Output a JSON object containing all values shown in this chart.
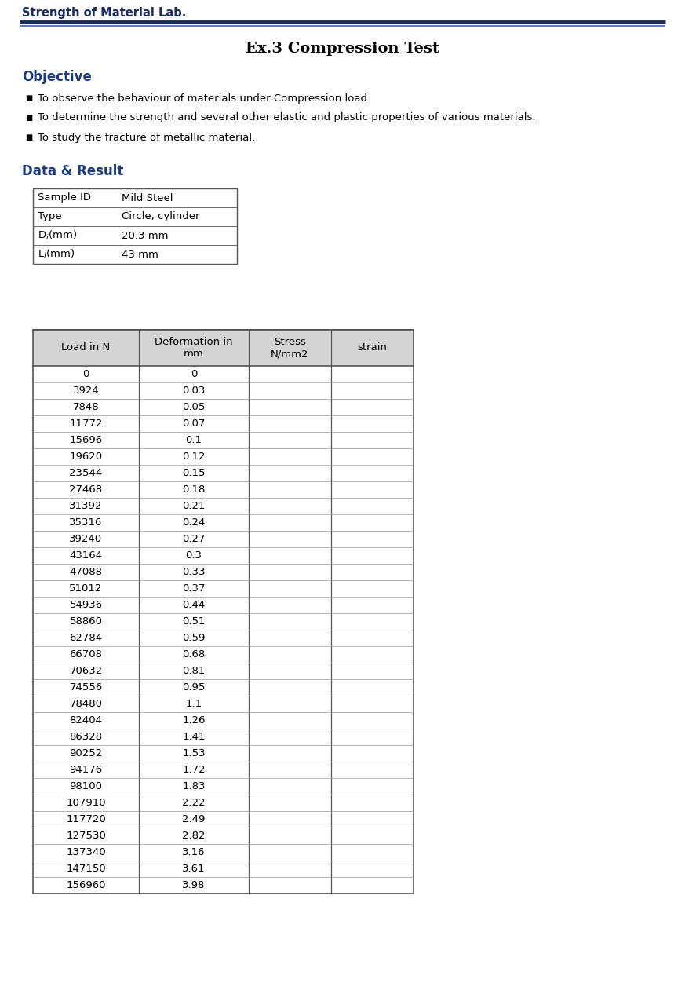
{
  "page_title": "Strength of Material Lab.",
  "main_title": "Ex.3 Compression Test",
  "section1_title": "Objective",
  "objectives": [
    "To observe the behaviour of materials under Compression load.",
    "To determine the strength and several other elastic and plastic properties of various materials.",
    "To study the fracture of metallic material."
  ],
  "section2_title": "Data & Result",
  "sample_info_col1": [
    "Sample ID",
    "Type",
    "D$_i$(mm)",
    "L$_i$(mm)"
  ],
  "sample_info_col2": [
    "Mild Steel",
    "Circle, cylinder",
    "20.3 mm",
    "43 mm"
  ],
  "table_headers": [
    "Load in N",
    "Deformation in\nmm",
    "Stress\nN/mm2",
    "strain"
  ],
  "table_data": [
    [
      "0",
      "0",
      "",
      ""
    ],
    [
      "3924",
      "0.03",
      "",
      ""
    ],
    [
      "7848",
      "0.05",
      "",
      ""
    ],
    [
      "11772",
      "0.07",
      "",
      ""
    ],
    [
      "15696",
      "0.1",
      "",
      ""
    ],
    [
      "19620",
      "0.12",
      "",
      ""
    ],
    [
      "23544",
      "0.15",
      "",
      ""
    ],
    [
      "27468",
      "0.18",
      "",
      ""
    ],
    [
      "31392",
      "0.21",
      "",
      ""
    ],
    [
      "35316",
      "0.24",
      "",
      ""
    ],
    [
      "39240",
      "0.27",
      "",
      ""
    ],
    [
      "43164",
      "0.3",
      "",
      ""
    ],
    [
      "47088",
      "0.33",
      "",
      ""
    ],
    [
      "51012",
      "0.37",
      "",
      ""
    ],
    [
      "54936",
      "0.44",
      "",
      ""
    ],
    [
      "58860",
      "0.51",
      "",
      ""
    ],
    [
      "62784",
      "0.59",
      "",
      ""
    ],
    [
      "66708",
      "0.68",
      "",
      ""
    ],
    [
      "70632",
      "0.81",
      "",
      ""
    ],
    [
      "74556",
      "0.95",
      "",
      ""
    ],
    [
      "78480",
      "1.1",
      "",
      ""
    ],
    [
      "82404",
      "1.26",
      "",
      ""
    ],
    [
      "86328",
      "1.41",
      "",
      ""
    ],
    [
      "90252",
      "1.53",
      "",
      ""
    ],
    [
      "94176",
      "1.72",
      "",
      ""
    ],
    [
      "98100",
      "1.83",
      "",
      ""
    ],
    [
      "107910",
      "2.22",
      "",
      ""
    ],
    [
      "117720",
      "2.49",
      "",
      ""
    ],
    [
      "127530",
      "2.82",
      "",
      ""
    ],
    [
      "137340",
      "3.16",
      "",
      ""
    ],
    [
      "147150",
      "3.61",
      "",
      ""
    ],
    [
      "156960",
      "3.98",
      "",
      ""
    ]
  ],
  "header_bg_color": "#d4d4d4",
  "page_bg_color": "#ffffff",
  "title_color": "#1a3a7a",
  "header_line_color1": "#1a2a5e",
  "header_line_color2": "#6677bb",
  "text_color": "#000000",
  "table_border_color": "#555555",
  "grid_color": "#999999",
  "bullet_color": "#000000"
}
